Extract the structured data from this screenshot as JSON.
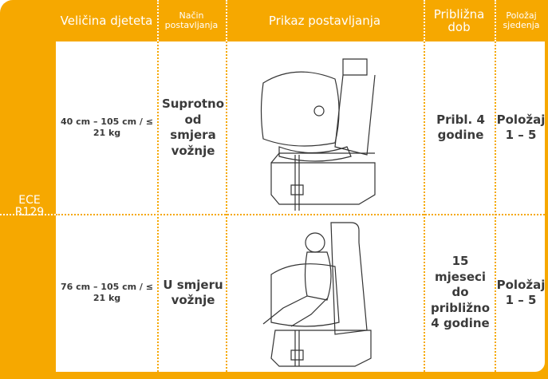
{
  "table": {
    "header": [
      "Veličina djeteta",
      "Način postavljanja",
      "Prikaz postavljanja",
      "Približna dob",
      "Položaj sjedenja"
    ],
    "standard": "ECE R129",
    "rows": [
      [
        "40 cm – 105 cm / ≤ 21 kg",
        "Suprotno od smjera vožnje",
        "Pribl. 4 godine",
        "Položaj 1 – 5"
      ],
      [
        "76 cm – 105 cm / ≤ 21 kg",
        "U smjeru vožnje",
        "15 mjeseci do približno 4 godine",
        "Položaj 1 – 5"
      ]
    ]
  }
}
